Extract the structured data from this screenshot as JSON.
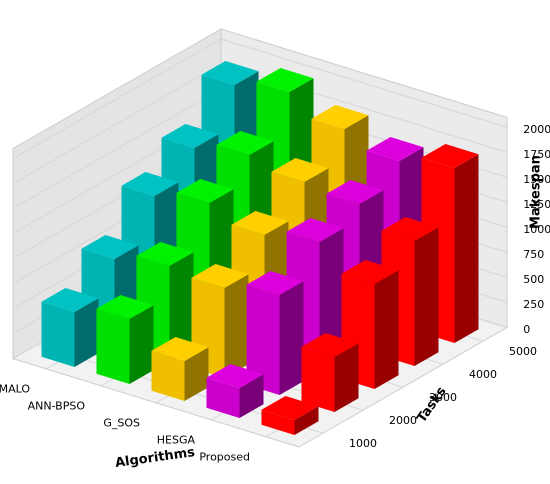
{
  "chart_data": {
    "type": "bar3d",
    "x_label": "Algorithms",
    "y_label": "Tasks",
    "z_label": "Makespan",
    "x": [
      1000,
      2000,
      3000,
      4000,
      5000
    ],
    "series": [
      {
        "name": "MALO",
        "color": "#00b4b4",
        "values": [
          550,
          850,
          1250,
          1500,
          1900
        ]
      },
      {
        "name": "ANN-BPSO",
        "color": "#00e000",
        "values": [
          650,
          950,
          1350,
          1600,
          2000
        ]
      },
      {
        "name": "G_SOS",
        "color": "#f0c000",
        "values": [
          400,
          900,
          1200,
          1500,
          1800
        ]
      },
      {
        "name": "HESGA",
        "color": "#cc00cc",
        "values": [
          300,
          1000,
          1300,
          1450,
          1650
        ]
      },
      {
        "name": "Proposed",
        "color": "#ff0000",
        "values": [
          150,
          550,
          1050,
          1250,
          1750
        ]
      }
    ],
    "zlim": [
      0,
      2000
    ],
    "zticks": [
      0,
      250,
      500,
      750,
      1000,
      1250,
      1500,
      1750,
      2000
    ]
  }
}
